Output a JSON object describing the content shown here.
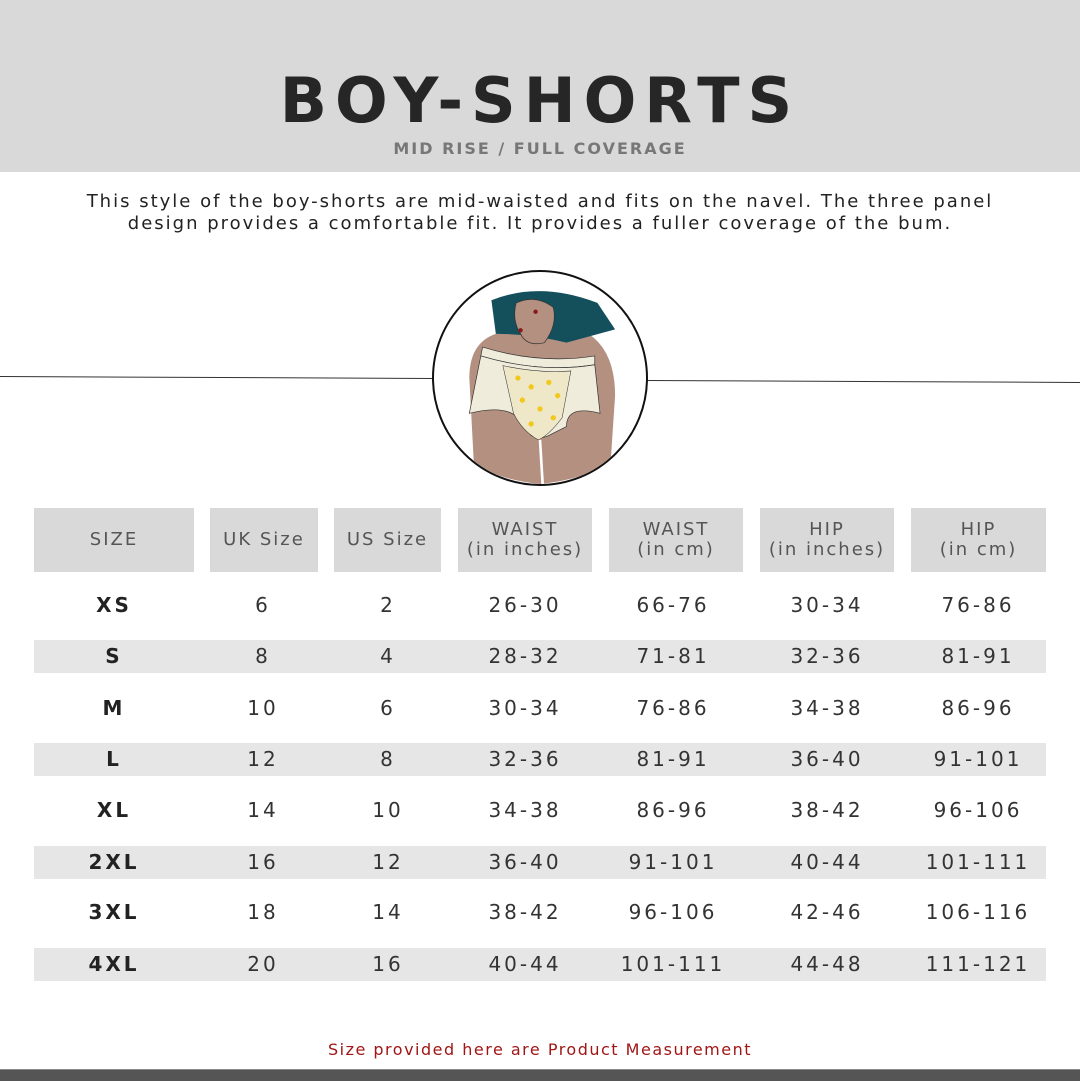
{
  "header": {
    "title": "BOY-SHORTS",
    "subtitle": "MID RISE / FULL COVERAGE"
  },
  "description": "This style of the boy-shorts are mid-waisted and fits on the navel. The three panel design provides a comfortable fit. It provides a fuller coverage of the bum.",
  "illustration": "boy-shorts-illustration",
  "colors": {
    "header_bg": "#d9d9d9",
    "stripe": "#e6e6e6",
    "note": "#a01616",
    "top": "#14505c",
    "skin": "#b49080",
    "fabric": "#efecdc"
  },
  "table": {
    "columns": [
      "SIZE",
      "UK Size",
      "US Size",
      "WAIST\n(in inches)",
      "WAIST\n(in cm)",
      "HIP\n(in inches)",
      "HIP\n(in cm)"
    ],
    "rows": [
      [
        "XS",
        "6",
        "2",
        "26-30",
        "66-76",
        "30-34",
        "76-86"
      ],
      [
        "S",
        "8",
        "4",
        "28-32",
        "71-81",
        "32-36",
        "81-91"
      ],
      [
        "M",
        "10",
        "6",
        "30-34",
        "76-86",
        "34-38",
        "86-96"
      ],
      [
        "L",
        "12",
        "8",
        "32-36",
        "81-91",
        "36-40",
        "91-101"
      ],
      [
        "XL",
        "14",
        "10",
        "34-38",
        "86-96",
        "38-42",
        "96-106"
      ],
      [
        "2XL",
        "16",
        "12",
        "36-40",
        "91-101",
        "40-44",
        "101-111"
      ],
      [
        "3XL",
        "18",
        "14",
        "38-42",
        "96-106",
        "42-46",
        "106-116"
      ],
      [
        "4XL",
        "20",
        "16",
        "40-44",
        "101-111",
        "44-48",
        "111-121"
      ]
    ]
  },
  "note": "Size provided here are Product Measurement"
}
